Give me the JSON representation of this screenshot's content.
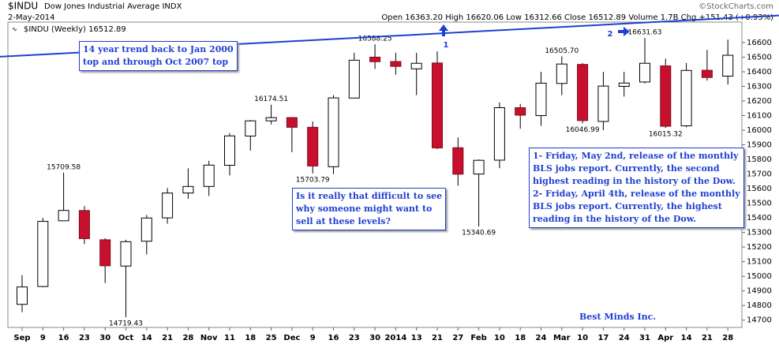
{
  "chart_data": {
    "type": "candlestick",
    "title": "$INDU",
    "subtitle": "Dow Jones Industrial Average INDX",
    "date": "2-May-2014",
    "watermark": "©StockCharts.com",
    "quote": "Open 16363.20 High 16620.06 Low 16312.66 Close 16512.89 Volume 1.7B Chg +151.43 (+0.93%)",
    "legend": "$INDU (Weekly) 16512.89",
    "categories": [
      "Sep",
      "9",
      "16",
      "23",
      "30",
      "Oct",
      "14",
      "21",
      "28",
      "Nov",
      "11",
      "18",
      "25",
      "Dec",
      "9",
      "16",
      "23",
      "30",
      "2014",
      "13",
      "21",
      "27",
      "Feb",
      "10",
      "18",
      "24",
      "Mar",
      "10",
      "17",
      "24",
      "31",
      "Apr",
      "14",
      "21",
      "28"
    ],
    "open": [
      14808,
      14930,
      15380,
      15450,
      15250,
      15070,
      15240,
      15400,
      15570,
      15615,
      15760,
      15960,
      16064,
      16086,
      16020,
      15750,
      16220,
      16500,
      16470,
      16420,
      16460,
      15880,
      15700,
      15795,
      16154,
      16100,
      16320,
      16450,
      16060,
      16300,
      16330,
      16440,
      16030,
      16410,
      16370
    ],
    "high": [
      15008,
      15400,
      15709.58,
      15480,
      15260,
      15250,
      15420,
      15604,
      15739,
      15790,
      15980,
      16070,
      16174.51,
      16090,
      16060,
      16240,
      16530,
      16588.25,
      16530,
      16530,
      16540,
      15950,
      15800,
      16190,
      16180,
      16400,
      16505.7,
      16460,
      16400,
      16400,
      16631.63,
      16490,
      16460,
      16550,
      16620.06
    ],
    "low": [
      14754,
      14925,
      15380,
      15220,
      14954,
      14719.43,
      15149,
      15360,
      15530,
      15550,
      15690,
      15860,
      16040,
      15850,
      15703.79,
      15700,
      16220,
      16420,
      16380,
      16240,
      15870,
      15620,
      15340.69,
      15740,
      16010,
      16030,
      16240,
      16046.99,
      16000,
      16230,
      16320,
      16015.32,
      16020,
      16340,
      16312.66
    ],
    "close": [
      14927,
      15376,
      15451,
      15258,
      15072,
      15237,
      15399,
      15570,
      15615,
      15761,
      15961,
      16064,
      16086,
      16020,
      15755,
      16221,
      16479,
      16469,
      16437,
      16458,
      15879,
      15699,
      15794,
      16154,
      16103,
      16322,
      16453,
      16066,
      16302,
      16323,
      16458,
      16027,
      16409,
      16361,
      16512.89
    ],
    "high_labels": [
      null,
      null,
      "15709.58",
      null,
      null,
      null,
      null,
      null,
      null,
      null,
      null,
      null,
      "16174.51",
      null,
      null,
      null,
      null,
      "16588.25",
      null,
      null,
      null,
      null,
      null,
      null,
      null,
      null,
      "16505.70",
      null,
      null,
      null,
      "16631.63",
      null,
      null,
      null,
      null
    ],
    "low_labels": [
      null,
      null,
      null,
      null,
      null,
      "14719.43",
      null,
      null,
      null,
      null,
      null,
      null,
      null,
      null,
      "15703.79",
      null,
      null,
      null,
      null,
      null,
      null,
      null,
      "15340.69",
      null,
      null,
      null,
      null,
      "16046.99",
      null,
      null,
      null,
      "16015.32",
      null,
      null,
      null
    ],
    "up_color": "#ffffff",
    "down_color": "#c8102e",
    "ylim": [
      14650,
      16740
    ],
    "yticks": [
      14700,
      14800,
      14900,
      15000,
      15100,
      15200,
      15300,
      15400,
      15500,
      15600,
      15700,
      15800,
      15900,
      16000,
      16100,
      16200,
      16300,
      16400,
      16500,
      16600
    ],
    "trendline": {
      "color": "#1f3fd0",
      "x": [
        0,
        34
      ],
      "y": [
        16511,
        16767
      ]
    },
    "markers": [
      "1",
      "2"
    ],
    "annotations": {
      "trend": [
        "14 year trend back to Jan 2000",
        "top and through Oct 2007 top"
      ],
      "question": [
        "Is it really that difficult to see",
        "why someone might want to",
        "sell at these levels?"
      ],
      "notes": [
        "1- Friday, May 2nd, release of the monthly",
        "BLS jobs report. Currently, the second",
        "highest reading in the history of the Dow.",
        "2- Friday, April 4th, release of the monthly",
        "BLS jobs report. Currently, the highest",
        "reading in the history of the Dow."
      ],
      "footer": "Best Minds Inc."
    }
  }
}
